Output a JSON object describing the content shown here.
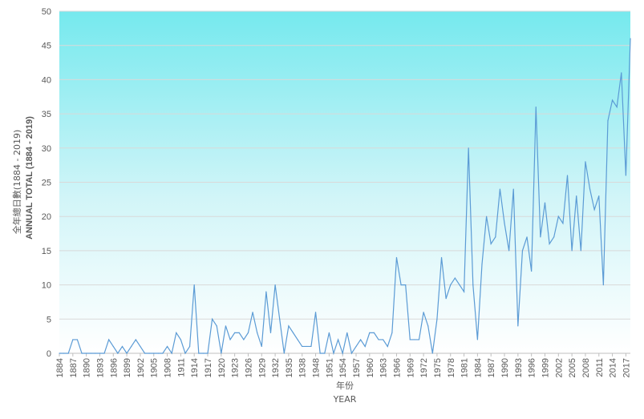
{
  "chart_data": {
    "type": "line",
    "title": "",
    "xlabel": "年份",
    "xlabel_en": "YEAR",
    "ylabel": "全年總日數(1884 - 2019)",
    "ylabel_en": "ANNUAL TOTAL (1884 - 2019)",
    "ylim": [
      0,
      50
    ],
    "yticks": [
      0,
      5,
      10,
      15,
      20,
      25,
      30,
      35,
      40,
      45,
      50
    ],
    "xlim": [
      1884,
      2019
    ],
    "xticks": [
      1884,
      1887,
      1890,
      1893,
      1896,
      1899,
      1902,
      1905,
      1908,
      1911,
      1914,
      1917,
      1920,
      1923,
      1926,
      1929,
      1932,
      1935,
      1938,
      1948,
      1951,
      1954,
      1957,
      1960,
      1963,
      1966,
      1969,
      1972,
      1975,
      1978,
      1981,
      1984,
      1987,
      1990,
      1993,
      1996,
      1999,
      2002,
      2005,
      2008,
      2011,
      2014,
      2017
    ],
    "grid": true,
    "legend": "none",
    "line_color": "#5b9bd5",
    "background_gradient": [
      "#75e9ee",
      "#ffffff"
    ],
    "series": [
      {
        "name": "",
        "values": [
          0,
          0,
          0,
          2,
          2,
          0,
          0,
          0,
          0,
          0,
          0,
          2,
          1,
          0,
          1,
          0,
          1,
          2,
          1,
          0,
          0,
          0,
          0,
          0,
          1,
          0,
          3,
          2,
          0,
          1,
          10,
          0,
          0,
          0,
          5,
          4,
          0,
          4,
          2,
          3,
          3,
          2,
          3,
          6,
          3,
          1,
          9,
          3,
          10,
          5,
          0,
          4,
          3,
          2,
          1,
          1,
          1,
          6,
          0,
          0,
          3,
          0,
          2,
          0,
          3,
          0,
          1,
          2,
          1,
          3,
          3,
          2,
          2,
          1,
          3,
          14,
          10,
          10,
          2,
          2,
          2,
          6,
          4,
          0,
          5,
          14,
          8,
          10,
          11,
          10,
          9,
          30,
          10,
          2,
          13,
          20,
          16,
          17,
          24,
          19,
          15,
          24,
          4,
          15,
          17,
          12,
          36,
          17,
          22,
          16,
          17,
          20,
          19,
          26,
          15,
          23,
          15,
          28,
          24,
          21,
          23,
          10,
          34,
          37,
          36,
          41,
          26,
          46
        ]
      }
    ]
  }
}
